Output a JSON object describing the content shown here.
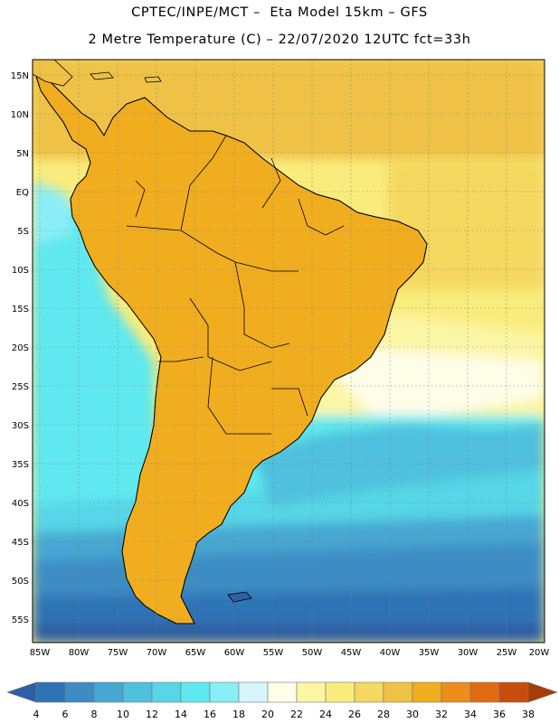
{
  "header": {
    "line1": "CPTEC/INPE/MCT –  Eta Model 15km – GFS",
    "line2": "2 Metre Temperature (C) – 22/07/2020 12UTC fct=33h"
  },
  "map": {
    "lat_labels": [
      "15N",
      "10N",
      "5N",
      "EQ",
      "5S",
      "10S",
      "15S",
      "20S",
      "25S",
      "30S",
      "35S",
      "40S",
      "45S",
      "50S",
      "55S"
    ],
    "lon_labels": [
      "85W",
      "80W",
      "75W",
      "70W",
      "65W",
      "60W",
      "55W",
      "50W",
      "45W",
      "40W",
      "35W",
      "30W",
      "25W",
      "20W"
    ],
    "gridlines": true,
    "land_outline_color": "#000000"
  },
  "colorbar": {
    "levels": [
      "4",
      "6",
      "8",
      "10",
      "12",
      "14",
      "16",
      "18",
      "20",
      "22",
      "24",
      "26",
      "28",
      "30",
      "32",
      "34",
      "36",
      "38"
    ],
    "colors": [
      "#2f5fa3",
      "#2f73b5",
      "#3d8dc4",
      "#46a7d2",
      "#4fc0dd",
      "#56d6e6",
      "#5ee8ef",
      "#8aeef6",
      "#d7f6fb",
      "#fefde8",
      "#fbf6a6",
      "#f9ec7d",
      "#f4d85f",
      "#efc246",
      "#f0ad20",
      "#eb8e1c",
      "#e16a12",
      "#c84d0c",
      "#a93b07"
    ],
    "under_color": "#2f5fa3",
    "over_color": "#a93b07"
  }
}
